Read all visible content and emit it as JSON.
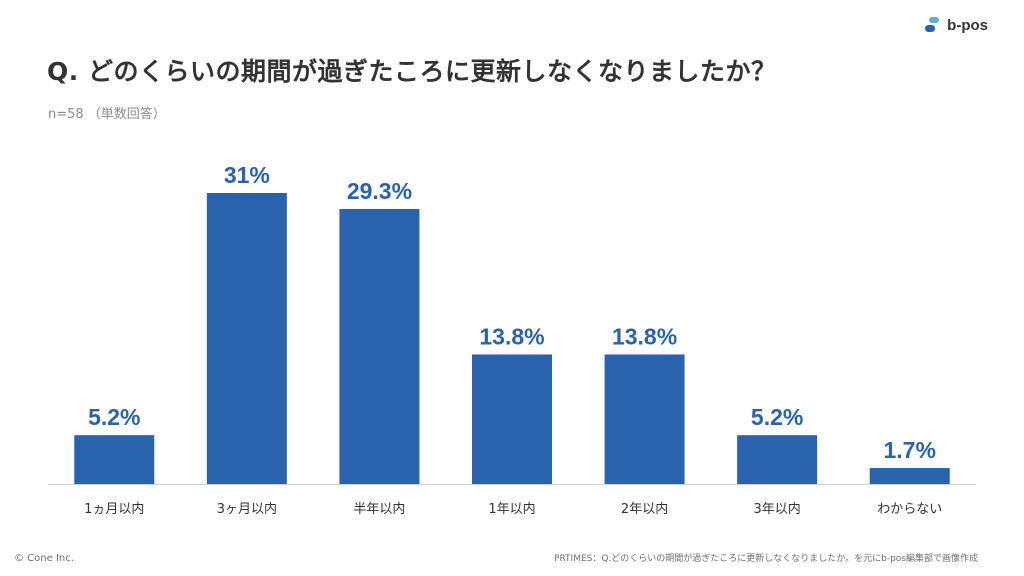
{
  "header": {
    "title": "Q. どのくらいの期間が過ぎたころに更新しなくなりましたか？",
    "subtitle": "n=58 （単数回答）"
  },
  "brand": {
    "name": "b-pos",
    "logo_icon": "b-pos-logo-icon",
    "accent_color": "#2a63ad",
    "logo_color_light": "#5fb0d6"
  },
  "footer": {
    "copyright": "© Cone Inc.",
    "source": "PRTIMES：Q.どのくらいの期間が過ぎたころに更新しなくなりましたか。を元にb-pos編集部で画像作成"
  },
  "chart_data": {
    "type": "bar",
    "categories": [
      "1ヵ月以内",
      "3ヶ月以内",
      "半年以内",
      "1年以内",
      "2年以内",
      "3年以内",
      "わからない"
    ],
    "values": [
      5.2,
      31,
      29.3,
      13.8,
      13.8,
      5.2,
      1.7
    ],
    "labels": [
      "5.2%",
      "31%",
      "29.3%",
      "13.8%",
      "13.8%",
      "5.2%",
      "1.7%"
    ],
    "unit": "%",
    "ylim": [
      0,
      31
    ],
    "grid": false,
    "bar_color": "#2a63ad",
    "label_color": "#2a63ad"
  }
}
